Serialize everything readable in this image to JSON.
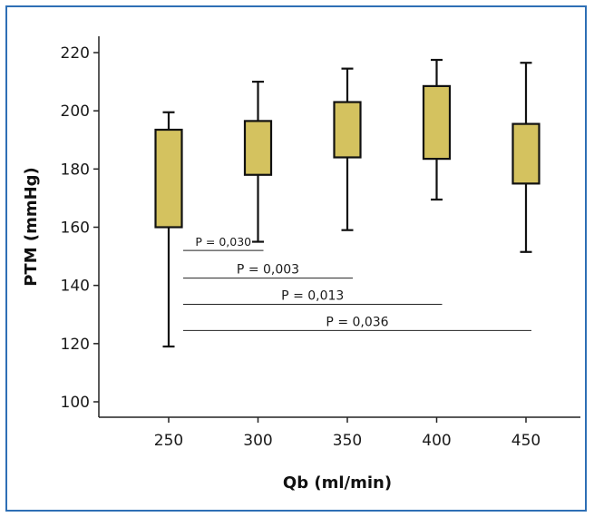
{
  "chart_data": {
    "type": "box",
    "xlabel": "Qb (ml/min)",
    "ylabel": "PTM (mmHg)",
    "ylim": [
      100,
      220
    ],
    "yticks": [
      100,
      120,
      140,
      160,
      180,
      200,
      220
    ],
    "categories": [
      "250",
      "300",
      "350",
      "400",
      "450"
    ],
    "boxes": [
      {
        "category": "250",
        "min": 119,
        "q1": 160,
        "q3": 193.5,
        "max": 199.5
      },
      {
        "category": "300",
        "min": 155,
        "q1": 178,
        "q3": 196.5,
        "max": 210
      },
      {
        "category": "350",
        "min": 159,
        "q1": 184,
        "q3": 203,
        "max": 214.5
      },
      {
        "category": "400",
        "min": 169.5,
        "q1": 183.5,
        "q3": 208.5,
        "max": 217.5
      },
      {
        "category": "450",
        "min": 151.5,
        "q1": 175,
        "q3": 195.5,
        "max": 216.5
      }
    ],
    "box_color": "#d4c25f",
    "frame_color": "#2e6fb5",
    "grid": false,
    "annotations": [
      {
        "text": "P = 0,030",
        "from": "250",
        "to": "300",
        "y": 152,
        "small": true
      },
      {
        "text": "P = 0,003",
        "from": "250",
        "to": "350",
        "y": 142.5
      },
      {
        "text": "P = 0,013",
        "from": "250",
        "to": "400",
        "y": 133.5
      },
      {
        "text": "P = 0,036",
        "from": "250",
        "to": "450",
        "y": 124.5
      }
    ]
  }
}
